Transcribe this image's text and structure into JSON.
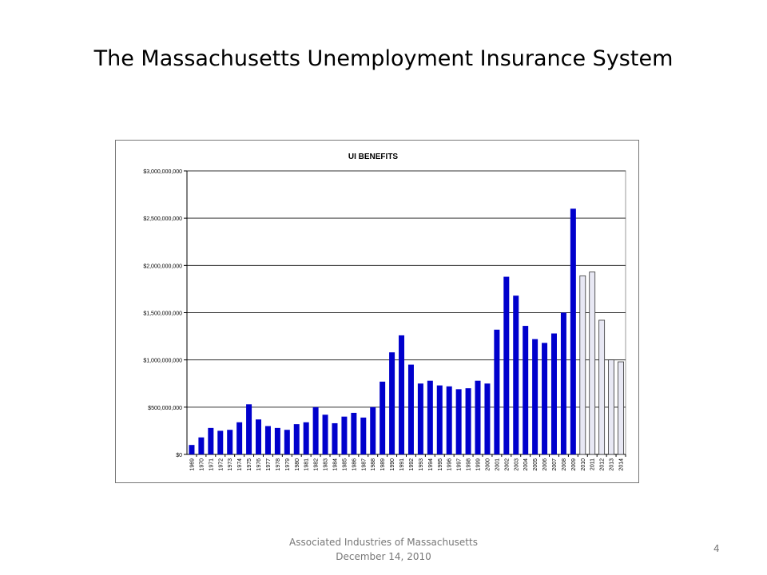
{
  "slide": {
    "title": "The Massachusetts Unemployment Insurance System",
    "footer_line1": "Associated Industries of Massachusetts",
    "footer_line2": "December 14, 2010",
    "page_number": "4"
  },
  "chart_data": {
    "type": "bar",
    "title": "UI BENEFITS",
    "xlabel": "",
    "ylabel": "",
    "ylim": [
      0,
      3000000000
    ],
    "yticks": [
      "$0",
      "$500,000,000",
      "$1,000,000,000",
      "$1,500,000,000",
      "$2,000,000,000",
      "$2,500,000,000",
      "$3,000,000,000"
    ],
    "grid": true,
    "colors": {
      "actual": "#0000cc",
      "projected": "#e8e8f4"
    },
    "categories": [
      "1969",
      "1970",
      "1971",
      "1972",
      "1973",
      "1974",
      "1975",
      "1976",
      "1977",
      "1978",
      "1979",
      "1980",
      "1981",
      "1982",
      "1983",
      "1984",
      "1985",
      "1986",
      "1987",
      "1988",
      "1989",
      "1990",
      "1991",
      "1992",
      "1993",
      "1994",
      "1995",
      "1996",
      "1997",
      "1998",
      "1999",
      "2000",
      "2001",
      "2002",
      "2003",
      "2004",
      "2005",
      "2006",
      "2007",
      "2008",
      "2009",
      "2010",
      "2011",
      "2012",
      "2013",
      "2014"
    ],
    "values": [
      100000000,
      180000000,
      280000000,
      250000000,
      260000000,
      340000000,
      530000000,
      370000000,
      300000000,
      280000000,
      260000000,
      320000000,
      340000000,
      500000000,
      420000000,
      330000000,
      400000000,
      440000000,
      390000000,
      500000000,
      770000000,
      1080000000,
      1260000000,
      950000000,
      750000000,
      780000000,
      730000000,
      720000000,
      690000000,
      700000000,
      780000000,
      750000000,
      1320000000,
      1880000000,
      1680000000,
      1360000000,
      1220000000,
      1180000000,
      1280000000,
      1500000000,
      2600000000,
      1890000000,
      1930000000,
      1420000000,
      1000000000,
      980000000
    ],
    "projected_from": "2010"
  }
}
